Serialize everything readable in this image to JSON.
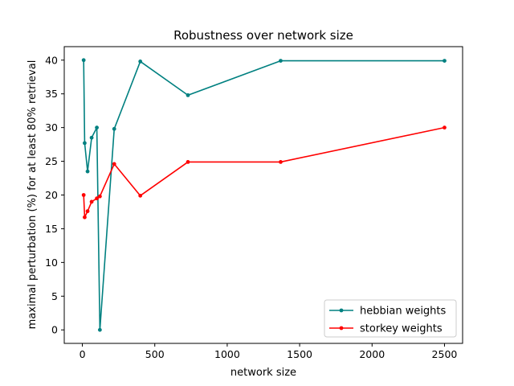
{
  "chart_data": {
    "type": "line",
    "title": "Robustness over network size",
    "xlabel": "network size",
    "ylabel": "maximal perturbation (%) for at least 80% retrieval",
    "xlim": [
      -125,
      2625
    ],
    "ylim": [
      -2,
      42
    ],
    "xticks": [
      0,
      500,
      1000,
      1500,
      2000,
      2500
    ],
    "yticks": [
      0,
      5,
      10,
      15,
      20,
      25,
      30,
      35,
      40
    ],
    "grid": false,
    "legend_position": "lower right",
    "series": [
      {
        "name": "hebbian weights",
        "color": "#008080",
        "x": [
          9,
          16,
          36,
          64,
          100,
          121,
          220,
          400,
          729,
          1369,
          2500
        ],
        "y": [
          40,
          27.7,
          23.5,
          28.5,
          30,
          0,
          29.8,
          39.8,
          34.8,
          39.9,
          39.9
        ]
      },
      {
        "name": "storkey weights",
        "color": "#ff0000",
        "x": [
          9,
          16,
          36,
          64,
          100,
          121,
          220,
          400,
          729,
          1369,
          2500
        ],
        "y": [
          20,
          16.7,
          17.6,
          19,
          19.5,
          19.8,
          24.6,
          19.9,
          24.9,
          24.9,
          30
        ]
      }
    ]
  }
}
